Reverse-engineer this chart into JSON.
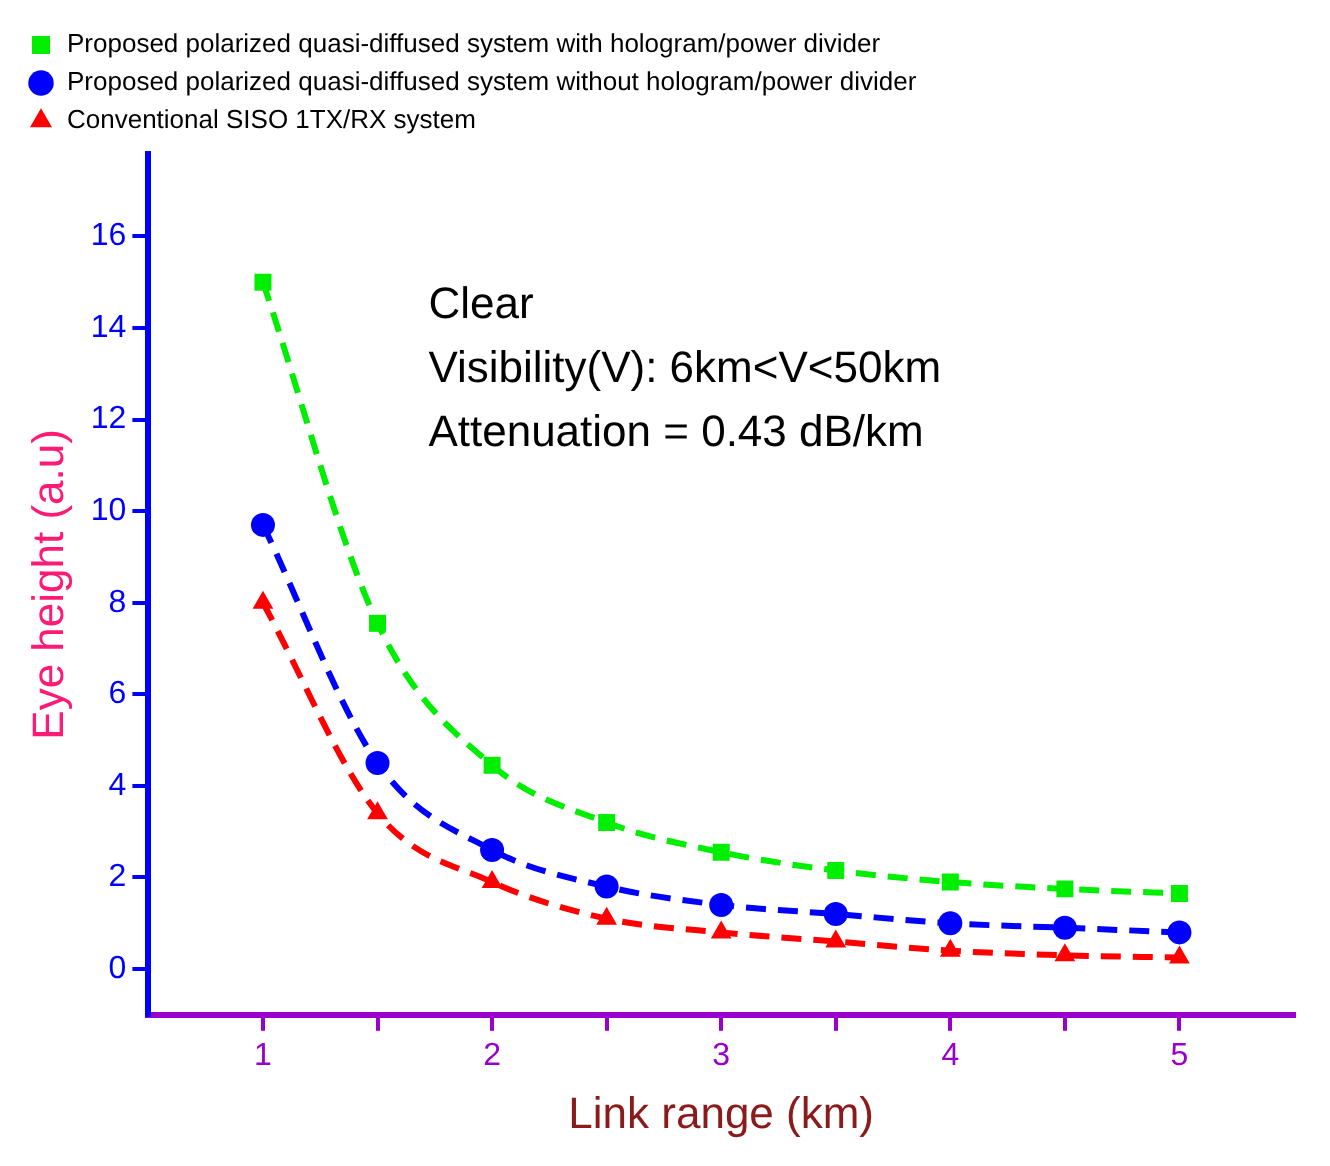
{
  "chart_data": {
    "type": "line",
    "xlabel": "Link range (km)",
    "ylabel": "Eye height (a.u)",
    "x": [
      1,
      1.5,
      2,
      2.5,
      3,
      3.5,
      4,
      4.5,
      5
    ],
    "series": [
      {
        "name": "Proposed polarized quasi-diffused system with hologram/power divider",
        "color": "#00ee00",
        "marker": "square",
        "values": [
          15,
          7.55,
          4.45,
          3.2,
          2.55,
          2.15,
          1.9,
          1.75,
          1.65
        ]
      },
      {
        "name": "Proposed polarized quasi-diffused system without hologram/power divider",
        "color": "#0000ff",
        "marker": "circle",
        "values": [
          9.7,
          4.5,
          2.6,
          1.8,
          1.4,
          1.2,
          1.0,
          0.9,
          0.8
        ]
      },
      {
        "name": "Conventional SISO 1TX/RX system",
        "color": "#ff0000",
        "marker": "triangle",
        "values": [
          8.0,
          3.4,
          1.9,
          1.1,
          0.8,
          0.6,
          0.4,
          0.3,
          0.25
        ]
      }
    ],
    "xlim": [
      0.5,
      5.5
    ],
    "xticks": [
      1,
      {
        "value": 1.5,
        "label": null
      },
      2,
      {
        "value": 2.5,
        "label": null
      },
      3,
      {
        "value": 3.5,
        "label": null
      },
      4,
      {
        "value": 4.5,
        "label": null
      },
      5
    ],
    "ylim": [
      -1,
      17.8
    ],
    "yticks": [
      0,
      2,
      4,
      6,
      8,
      10,
      12,
      14,
      16
    ],
    "annotations": [
      "Clear",
      "Visibility(V): 6km<V<50km",
      "Attenuation = 0.43 dB/km"
    ],
    "grid": false,
    "legend": "top",
    "line_style": "dashed"
  }
}
